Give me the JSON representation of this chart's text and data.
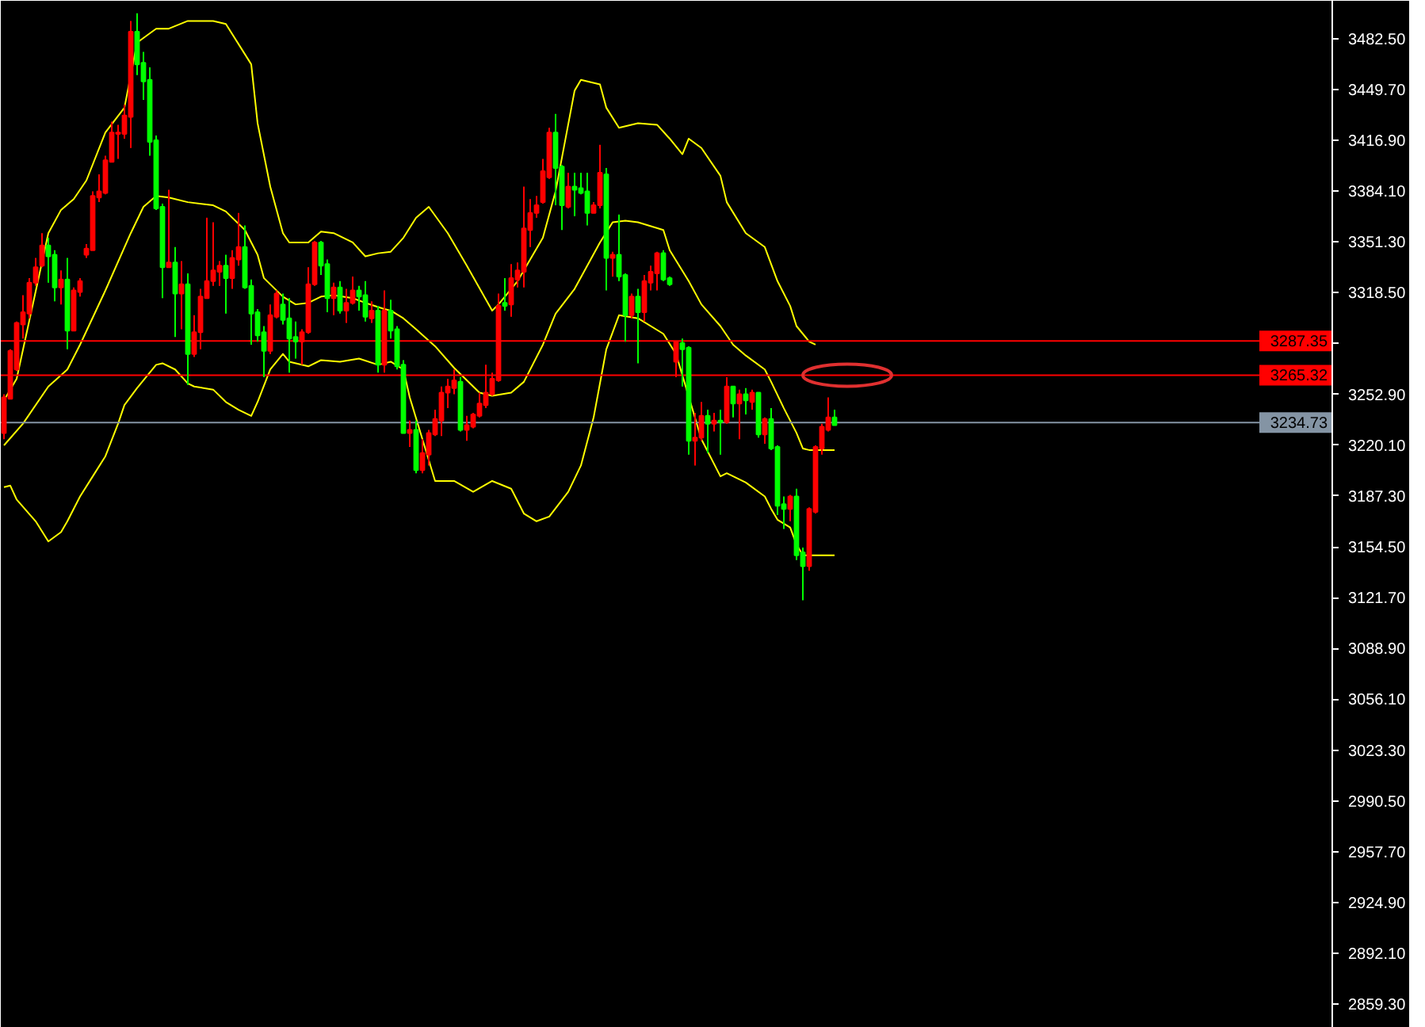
{
  "chart_data": {
    "type": "candlestick",
    "categories": [
      null,
      null,
      null,
      null,
      null,
      null,
      null,
      null,
      null,
      null,
      null,
      null,
      null,
      null,
      null,
      null,
      null,
      null,
      null,
      null,
      null,
      null,
      null,
      null,
      null,
      null,
      null,
      null,
      null,
      null,
      null,
      null,
      null,
      null,
      null,
      null,
      null,
      null,
      null,
      null,
      null,
      null,
      null,
      null,
      null,
      null,
      null,
      null,
      null,
      null,
      null,
      null,
      null,
      null,
      null,
      null,
      null,
      null,
      null,
      null,
      null,
      null,
      null,
      null,
      null,
      null,
      null,
      null,
      null,
      null,
      null,
      null,
      null,
      null,
      null,
      null,
      null,
      null,
      null,
      null,
      null,
      null,
      null,
      null,
      null,
      null,
      null,
      null,
      null,
      null,
      null,
      null,
      null,
      null,
      null,
      null,
      null,
      null,
      null,
      null,
      null,
      null,
      null,
      null,
      null,
      null,
      null,
      null,
      null,
      null,
      null,
      null,
      null,
      null,
      null,
      null,
      null,
      null,
      null,
      null,
      null,
      null,
      null,
      null,
      null,
      null,
      null,
      null,
      null,
      null,
      null,
      null,
      null,
      null,
      null,
      null,
      null,
      null,
      null,
      null,
      null,
      null,
      null,
      null,
      null,
      null,
      null,
      null,
      null,
      null,
      null,
      null,
      null,
      null,
      null,
      null,
      null,
      null,
      null,
      null,
      null,
      null,
      null,
      null,
      null,
      null,
      null,
      null,
      null,
      null,
      null,
      null,
      null,
      null,
      null,
      null,
      null,
      null,
      null,
      null,
      null,
      null,
      null,
      null,
      null,
      null,
      null,
      null,
      null,
      null,
      null,
      null,
      null,
      null,
      null,
      null,
      null,
      null,
      null,
      null,
      null,
      null,
      null,
      null,
      null,
      null,
      null,
      null,
      null,
      null
    ],
    "ohlc": [
      [
        3228,
        3253,
        3224,
        3251
      ],
      [
        3250,
        3282,
        3250,
        3281
      ],
      [
        3269,
        3300,
        3268,
        3299
      ],
      [
        3298,
        3317,
        3289,
        3306
      ],
      [
        3305,
        3328,
        3302,
        3325
      ],
      [
        3325,
        3341,
        3323,
        3335
      ],
      [
        3336,
        3357,
        3335,
        3349
      ],
      [
        3349,
        3354,
        3325,
        3342
      ],
      [
        3343,
        3346,
        3313,
        3322
      ],
      [
        3322,
        3333,
        3311,
        3327
      ],
      [
        3327,
        3341,
        3282,
        3294
      ],
      [
        3294,
        3322,
        3294,
        3320
      ],
      [
        3319,
        3328,
        3316,
        3326
      ],
      [
        3343,
        3350,
        3341,
        3347
      ],
      [
        3346,
        3384,
        3346,
        3381
      ],
      [
        3380,
        3395,
        3377,
        3384
      ],
      [
        3383,
        3407,
        3382,
        3404
      ],
      [
        3403,
        3429,
        3403,
        3422
      ],
      [
        3421,
        3427,
        3405,
        3422
      ],
      [
        3421,
        3440,
        3418,
        3433
      ],
      [
        3432,
        3494,
        3412,
        3487
      ],
      [
        3487,
        3499,
        3459,
        3466
      ],
      [
        3467,
        3474,
        3443,
        3455
      ],
      [
        3456,
        3464,
        3407,
        3416
      ],
      [
        3417,
        3420,
        3372,
        3373
      ],
      [
        3374,
        3376,
        3315,
        3335
      ],
      [
        3335,
        3385,
        3335,
        3338
      ],
      [
        3338,
        3348,
        3290,
        3318
      ],
      [
        3318,
        3339,
        3295,
        3324
      ],
      [
        3324,
        3331,
        3259,
        3279
      ],
      [
        3279,
        3304,
        3277,
        3293
      ],
      [
        3293,
        3321,
        3282,
        3316
      ],
      [
        3315,
        3367,
        3315,
        3326
      ],
      [
        3326,
        3364,
        3323,
        3333
      ],
      [
        3332,
        3339,
        3323,
        3336
      ],
      [
        3336,
        3343,
        3305,
        3328
      ],
      [
        3328,
        3346,
        3321,
        3341
      ],
      [
        3340,
        3370,
        3336,
        3348
      ],
      [
        3348,
        3362,
        3321,
        3322
      ],
      [
        3323,
        3327,
        3285,
        3305
      ],
      [
        3306,
        3308,
        3287,
        3291
      ],
      [
        3293,
        3297,
        3264,
        3281
      ],
      [
        3281,
        3311,
        3279,
        3304
      ],
      [
        3303,
        3320,
        3302,
        3318
      ],
      [
        3311,
        3318,
        3298,
        3301
      ],
      [
        3302,
        3315,
        3267,
        3289
      ],
      [
        3290,
        3300,
        3276,
        3287
      ],
      [
        3287,
        3295,
        3272,
        3293
      ],
      [
        3293,
        3335,
        3292,
        3324
      ],
      [
        3324,
        3352,
        3323,
        3351
      ],
      [
        3351,
        3352,
        3330,
        3336
      ],
      [
        3337,
        3340,
        3306,
        3315
      ],
      [
        3315,
        3325,
        3304,
        3322
      ],
      [
        3322,
        3326,
        3305,
        3307
      ],
      [
        3307,
        3321,
        3299,
        3312
      ],
      [
        3312,
        3329,
        3311,
        3320
      ],
      [
        3320,
        3323,
        3307,
        3316
      ],
      [
        3317,
        3326,
        3300,
        3303
      ],
      [
        3302,
        3313,
        3299,
        3307
      ],
      [
        3307,
        3310,
        3267,
        3272
      ],
      [
        3272,
        3320,
        3267,
        3307
      ],
      [
        3307,
        3314,
        3289,
        3294
      ],
      [
        3295,
        3297,
        3269,
        3271
      ],
      [
        3272,
        3275,
        3228,
        3228
      ],
      [
        3228,
        3236,
        3219,
        3230
      ],
      [
        3230,
        3236,
        3202,
        3204
      ],
      [
        3204,
        3224,
        3202,
        3215
      ],
      [
        3214,
        3230,
        3207,
        3228
      ],
      [
        3227,
        3243,
        3226,
        3237
      ],
      [
        3236,
        3258,
        3226,
        3254
      ],
      [
        3254,
        3263,
        3244,
        3258
      ],
      [
        3257,
        3269,
        3253,
        3262
      ],
      [
        3261,
        3264,
        3229,
        3230
      ],
      [
        3230,
        3239,
        3223,
        3233
      ],
      [
        3232,
        3241,
        3231,
        3240
      ],
      [
        3239,
        3254,
        3238,
        3247
      ],
      [
        3246,
        3272,
        3244,
        3254
      ],
      [
        3253,
        3267,
        3252,
        3263
      ],
      [
        3262,
        3318,
        3261,
        3310
      ],
      [
        3312,
        3328,
        3307,
        3310
      ],
      [
        3311,
        3337,
        3303,
        3328
      ],
      [
        3327,
        3338,
        3322,
        3333
      ],
      [
        3332,
        3387,
        3322,
        3360
      ],
      [
        3359,
        3379,
        3348,
        3370
      ],
      [
        3370,
        3381,
        3367,
        3375
      ],
      [
        3377,
        3405,
        3376,
        3397
      ],
      [
        3393,
        3425,
        3392,
        3422
      ],
      [
        3422,
        3434,
        3375,
        3399
      ],
      [
        3400,
        3401,
        3359,
        3375
      ],
      [
        3374,
        3396,
        3373,
        3387
      ],
      [
        3387,
        3396,
        3368,
        3385
      ],
      [
        3386,
        3396,
        3382,
        3383
      ],
      [
        3384,
        3396,
        3362,
        3370
      ],
      [
        3370,
        3377,
        3370,
        3375
      ],
      [
        3375,
        3414,
        3373,
        3396
      ],
      [
        3395,
        3399,
        3320,
        3341
      ],
      [
        3341,
        3345,
        3329,
        3343
      ],
      [
        3343,
        3369,
        3326,
        3329
      ],
      [
        3330,
        3331,
        3287,
        3304
      ],
      [
        3304,
        3318,
        3302,
        3316
      ],
      [
        3316,
        3321,
        3273,
        3306
      ],
      [
        3306,
        3330,
        3300,
        3326
      ],
      [
        3325,
        3336,
        3320,
        3332
      ],
      [
        3331,
        3345,
        3320,
        3344
      ],
      [
        3344,
        3346,
        3326,
        3327
      ],
      [
        3328,
        3329,
        3323,
        3324
      ],
      [
        3274,
        3287,
        3264,
        3287
      ],
      [
        3286,
        3289,
        3258,
        3282
      ],
      [
        3283,
        3284,
        3214,
        3223
      ],
      [
        3223,
        3241,
        3207,
        3225
      ],
      [
        3225,
        3248,
        3223,
        3239
      ],
      [
        3239,
        3243,
        3215,
        3234
      ],
      [
        3234,
        3241,
        3229,
        3236
      ],
      [
        3236,
        3243,
        3214,
        3235
      ],
      [
        3235,
        3264,
        3234,
        3258
      ],
      [
        3258,
        3258,
        3238,
        3247
      ],
      [
        3247,
        3256,
        3224,
        3253
      ],
      [
        3253,
        3257,
        3240,
        3249
      ],
      [
        3248,
        3256,
        3243,
        3254
      ],
      [
        3254,
        3254,
        3225,
        3227
      ],
      [
        3227,
        3238,
        3221,
        3237
      ],
      [
        3237,
        3244,
        3217,
        3218
      ],
      [
        3219,
        3220,
        3175,
        3181
      ],
      [
        3182,
        3187,
        3166,
        3179
      ],
      [
        3179,
        3188,
        3171,
        3187
      ],
      [
        3187,
        3192,
        3146,
        3149
      ],
      [
        3151,
        3154,
        3120,
        3142
      ],
      [
        3142,
        3180,
        3139,
        3179
      ],
      [
        3177,
        3220,
        3176,
        3219
      ],
      [
        3218,
        3234,
        3214,
        3232
      ],
      [
        3230,
        3251,
        3229,
        3238
      ],
      [
        3238,
        3243,
        3233,
        3233
      ],
      null,
      null,
      null,
      null,
      null,
      null,
      null,
      null,
      null,
      null,
      null,
      null,
      null,
      null,
      null,
      null,
      null,
      null,
      null,
      null,
      null,
      null,
      null,
      null,
      null,
      null,
      null,
      null,
      null,
      null,
      null,
      null,
      null,
      null,
      null,
      null,
      null,
      null,
      null,
      null,
      null,
      null,
      null,
      null,
      null,
      null,
      null,
      null,
      null,
      null,
      null,
      null,
      null,
      null,
      null,
      null,
      null,
      null,
      null,
      null,
      null,
      null,
      null,
      null,
      null,
      null,
      null,
      null,
      null,
      null,
      null,
      null,
      null,
      null,
      null,
      null,
      null,
      null
    ],
    "colors": [
      "#ff0000",
      "#ff0000",
      "#ff0000",
      "#ff0000",
      "#ff0000",
      "#ff0000",
      "#ff0000",
      "#00ff00",
      "#00ff00",
      "#ff0000",
      "#00ff00",
      "#ff0000",
      "#ff0000",
      "#ff0000",
      "#ff0000",
      "#ff0000",
      "#ff0000",
      "#ff0000",
      "#ff0000",
      "#ff0000",
      "#ff0000",
      "#00ff00",
      "#00ff00",
      "#00ff00",
      "#00ff00",
      "#00ff00",
      "#ff0000",
      "#00ff00",
      "#ff0000",
      "#00ff00",
      "#ff0000",
      "#ff0000",
      "#ff0000",
      "#ff0000",
      "#ff0000",
      "#00ff00",
      "#ff0000",
      "#ff0000",
      "#00ff00",
      "#00ff00",
      "#00ff00",
      "#00ff00",
      "#ff0000",
      "#ff0000",
      "#00ff00",
      "#00ff00",
      "#00ff00",
      "#ff0000",
      "#ff0000",
      "#ff0000",
      "#00ff00",
      "#00ff00",
      "#ff0000",
      "#00ff00",
      "#ff0000",
      "#ff0000",
      "#00ff00",
      "#00ff00",
      "#ff0000",
      "#00ff00",
      "#ff0000",
      "#00ff00",
      "#00ff00",
      "#00ff00",
      "#ff0000",
      "#00ff00",
      "#ff0000",
      "#ff0000",
      "#ff0000",
      "#ff0000",
      "#ff0000",
      "#ff0000",
      "#00ff00",
      "#ff0000",
      "#ff0000",
      "#ff0000",
      "#ff0000",
      "#ff0000",
      "#ff0000",
      "#00ff00",
      "#ff0000",
      "#ff0000",
      "#ff0000",
      "#ff0000",
      "#ff0000",
      "#ff0000",
      "#ff0000",
      "#00ff00",
      "#00ff00",
      "#ff0000",
      "#00ff00",
      "#00ff00",
      "#00ff00",
      "#ff0000",
      "#ff0000",
      "#00ff00",
      "#ff0000",
      "#00ff00",
      "#00ff00",
      "#ff0000",
      "#00ff00",
      "#ff0000",
      "#ff0000",
      "#ff0000",
      "#00ff00",
      "#00ff00",
      "#ff0000",
      "#00ff00",
      "#00ff00",
      "#ff0000",
      "#ff0000",
      "#00ff00",
      "#ff0000",
      "#00ff00",
      "#ff0000",
      "#00ff00",
      "#ff0000",
      "#00ff00",
      "#ff0000",
      "#00ff00",
      "#ff0000",
      "#00ff00",
      "#00ff00",
      "#00ff00",
      "#ff0000",
      "#00ff00",
      "#00ff00",
      "#ff0000",
      "#ff0000",
      "#ff0000",
      "#ff0000",
      "#00ff00",
      null,
      null,
      null,
      null,
      null,
      null,
      null,
      null,
      null,
      null,
      null,
      null,
      null,
      null,
      null,
      null,
      null,
      null,
      null,
      null,
      null,
      null,
      null,
      null,
      null,
      null,
      null,
      null,
      null,
      null,
      null,
      null,
      null,
      null,
      null,
      null,
      null,
      null,
      null,
      null,
      null,
      null,
      null,
      null,
      null,
      null,
      null,
      null,
      null,
      null,
      null,
      null,
      null,
      null,
      null,
      null,
      null,
      null,
      null,
      null,
      null,
      null,
      null,
      null,
      null,
      null,
      null,
      null,
      null,
      null,
      null,
      null,
      null,
      null,
      null,
      null,
      null,
      null
    ],
    "series": [
      {
        "type": "line",
        "color": "#ffff00",
        "values": [
          3249,
          null,
          3263,
          null,
          null,
          null,
          null,
          3357,
          null,
          3372,
          null,
          3379,
          null,
          3391,
          null,
          null,
          3422,
          null,
          null,
          3438,
          null,
          3480,
          null,
          null,
          3489,
          null,
          3489,
          null,
          null,
          3494,
          null,
          null,
          null,
          3494,
          null,
          3492,
          null,
          null,
          null,
          3466,
          3428,
          null,
          3387,
          null,
          3357,
          3351,
          null,
          null,
          3351,
          null,
          3358,
          null,
          3357,
          null,
          null,
          3351,
          null,
          3342,
          null,
          3344,
          null,
          3345,
          null,
          3354,
          null,
          3367,
          null,
          3374,
          null,
          null,
          3357,
          null,
          null,
          3336,
          null,
          null,
          null,
          3307,
          3311,
          null,
          null,
          3326,
          null,
          null,
          null,
          3354,
          null,
          3384,
          null,
          null,
          3449,
          3456,
          null,
          null,
          3453,
          3438,
          null,
          3425,
          null,
          null,
          3428,
          null,
          null,
          3427,
          null,
          3418,
          null,
          3408,
          3418,
          null,
          3412,
          null,
          null,
          3394,
          3377,
          null,
          null,
          3357,
          null,
          null,
          3348,
          null,
          3326,
          null,
          3310,
          3297,
          null,
          3287,
          3285,
          null,
          null,
          null,
          null,
          null,
          null,
          null,
          null,
          null,
          null,
          null,
          null,
          null,
          null,
          null,
          null,
          null,
          null,
          null,
          null,
          null,
          null,
          null,
          null,
          null,
          null,
          null,
          null,
          null,
          null,
          null,
          null,
          null,
          null,
          null,
          null,
          null,
          null,
          null,
          null,
          null,
          null,
          null,
          null,
          null,
          null,
          null,
          null,
          null,
          null,
          null,
          null,
          null,
          null,
          null,
          null,
          null,
          null,
          null,
          null,
          null,
          null,
          null,
          null,
          null,
          null,
          null,
          null,
          null,
          null,
          null,
          null,
          null,
          null,
          null,
          null,
          null,
          null,
          null,
          null,
          null
        ]
      },
      {
        "type": "line",
        "color": "#ffff00",
        "values": [
          3220,
          null,
          null,
          3234,
          null,
          null,
          null,
          3258,
          null,
          null,
          3269,
          null,
          3285,
          null,
          null,
          null,
          3320,
          null,
          null,
          null,
          3357,
          null,
          3374,
          null,
          3381,
          null,
          3380,
          null,
          null,
          3377,
          null,
          null,
          null,
          3375,
          null,
          3371,
          null,
          null,
          3359,
          null,
          3343,
          3328,
          null,
          null,
          3316,
          null,
          3311,
          null,
          3312,
          null,
          3316,
          null,
          3317,
          null,
          null,
          3315,
          null,
          3312,
          null,
          null,
          3308,
          3307,
          null,
          3302,
          null,
          3295,
          null,
          null,
          3284,
          null,
          null,
          3270,
          null,
          null,
          null,
          3254,
          null,
          3252,
          null,
          null,
          3254,
          null,
          3261,
          null,
          null,
          3285,
          null,
          3305,
          null,
          null,
          3321,
          null,
          3336,
          null,
          3351,
          null,
          3364,
          null,
          3365,
          null,
          3364,
          null,
          null,
          null,
          3359,
          3346,
          null,
          null,
          3326,
          null,
          3311,
          null,
          null,
          3297,
          null,
          3285,
          null,
          3278,
          null,
          null,
          3269,
          3261,
          null,
          3244,
          null,
          3228,
          3218,
          3217,
          null,
          null,
          null,
          3217,
          null,
          null,
          null,
          null,
          null,
          null,
          null,
          null,
          null,
          null,
          null,
          null,
          null,
          null,
          null,
          null,
          null,
          null,
          null,
          null,
          null,
          null,
          null,
          null,
          null,
          null,
          null,
          null,
          null,
          null,
          null,
          null,
          null,
          null,
          null,
          null,
          null,
          null,
          null,
          null,
          null,
          null,
          null,
          null,
          null,
          null,
          null,
          null,
          null,
          null,
          null,
          null,
          null,
          null,
          null,
          null,
          null,
          null,
          null,
          null,
          null,
          null,
          null,
          null,
          null,
          null,
          null,
          null,
          null,
          null,
          null,
          null,
          null,
          null,
          null,
          null,
          null,
          null
        ]
      },
      {
        "type": "line",
        "color": "#ffff00",
        "values": [
          3193,
          3194,
          3185,
          null,
          null,
          3171,
          null,
          3158,
          null,
          3164,
          3171,
          null,
          3187,
          null,
          3200,
          null,
          3213,
          null,
          3234,
          3246,
          null,
          3257,
          null,
          null,
          3272,
          3273,
          null,
          3269,
          null,
          3260,
          3258,
          null,
          null,
          3256,
          null,
          3248,
          null,
          3243,
          null,
          3239,
          3248,
          null,
          3269,
          null,
          3279,
          3274,
          null,
          null,
          3271,
          null,
          3275,
          null,
          null,
          3274,
          null,
          null,
          3276,
          null,
          null,
          3272,
          null,
          3274,
          null,
          3269,
          3251,
          null,
          null,
          null,
          3197,
          null,
          null,
          3197,
          null,
          null,
          3190,
          null,
          null,
          3197,
          null,
          null,
          3192,
          null,
          3176,
          null,
          3171,
          null,
          3174,
          null,
          null,
          3190,
          null,
          3207,
          null,
          3238,
          null,
          3282,
          null,
          3304,
          null,
          null,
          3302,
          null,
          null,
          null,
          3292,
          null,
          3279,
          null,
          null,
          null,
          3224,
          null,
          null,
          3200,
          3202,
          null,
          null,
          3196,
          null,
          null,
          3187,
          3179,
          3172,
          null,
          3167,
          3156,
          3149,
          null,
          null,
          null,
          null,
          3149,
          null,
          null,
          null,
          null,
          null,
          null,
          null,
          null,
          null,
          null,
          null,
          null,
          null,
          null,
          null,
          null,
          null,
          null,
          null,
          null,
          null,
          null,
          null,
          null,
          null,
          null,
          null,
          null,
          null,
          null,
          null,
          null,
          null,
          null,
          null,
          null,
          null,
          null,
          null,
          null,
          null,
          null,
          null,
          null,
          null,
          null,
          null,
          null,
          null,
          null,
          null,
          null,
          null,
          null,
          null,
          null,
          null,
          null,
          null,
          null,
          null,
          null,
          null,
          null,
          null,
          null,
          null,
          null,
          null,
          null,
          null,
          null,
          null,
          null,
          null,
          null,
          null,
          null
        ]
      }
    ],
    "ylim": [
      2844,
      3507
    ],
    "yticks": [
      {
        "value": 3482.5,
        "label": "3482.50"
      },
      {
        "value": 3449.7,
        "label": "3449.70"
      },
      {
        "value": 3416.9,
        "label": "3416.90"
      },
      {
        "value": 3384.1,
        "label": "3384.10"
      },
      {
        "value": 3351.3,
        "label": "3351.30"
      },
      {
        "value": 3318.5,
        "label": "3318.50"
      },
      {
        "value": 3285.7,
        "label": null
      },
      {
        "value": 3252.9,
        "label": "3252.90"
      },
      {
        "value": 3220.1,
        "label": "3220.10"
      },
      {
        "value": 3187.3,
        "label": "3187.30"
      },
      {
        "value": 3154.5,
        "label": "3154.50"
      },
      {
        "value": 3121.7,
        "label": "3121.70"
      },
      {
        "value": 3088.9,
        "label": "3088.90"
      },
      {
        "value": 3056.1,
        "label": "3056.10"
      },
      {
        "value": 3023.3,
        "label": "3023.30"
      },
      {
        "value": 2990.5,
        "label": "2990.50"
      },
      {
        "value": 2957.7,
        "label": "2957.70"
      },
      {
        "value": 2924.9,
        "label": "2924.90"
      },
      {
        "value": 2892.1,
        "label": "2892.10"
      },
      {
        "value": 2859.3,
        "label": "2859.30"
      }
    ],
    "ref_lines": [
      {
        "axis": "y",
        "value": 3287.35,
        "label": "3287.35",
        "color": "#ff0000"
      },
      {
        "axis": "y",
        "value": 3265.32,
        "label": "3265.32",
        "color": "#ff0000"
      },
      {
        "axis": "y",
        "value": 3234.73,
        "label": "3234.73",
        "color": "#8494a4"
      }
    ],
    "tick_labels": "y",
    "grid": false
  }
}
